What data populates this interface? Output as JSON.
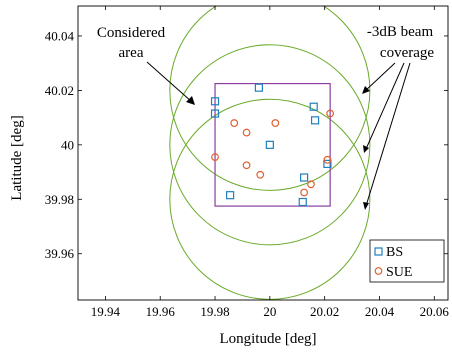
{
  "chart_data": {
    "type": "scatter",
    "xlabel": "Longitude [deg]",
    "ylabel": "Latitude [deg]",
    "xlim": [
      19.93,
      20.065
    ],
    "ylim": [
      39.943,
      40.051
    ],
    "xticks": [
      19.94,
      19.96,
      19.98,
      20,
      20.02,
      20.04,
      20.06
    ],
    "yticks": [
      39.96,
      39.98,
      40,
      40.02,
      40.04
    ],
    "grid": false,
    "legend_position": "bottom-right",
    "series": [
      {
        "name": "BS",
        "marker": "square",
        "color": "#1f7fbf",
        "points": [
          [
            19.98,
            40.016
          ],
          [
            19.98,
            40.0115
          ],
          [
            19.996,
            40.021
          ],
          [
            20.0,
            40.0
          ],
          [
            20.016,
            40.014
          ],
          [
            20.0165,
            40.009
          ],
          [
            19.9855,
            39.9815
          ],
          [
            20.0125,
            39.988
          ],
          [
            20.012,
            39.979
          ],
          [
            20.021,
            39.993
          ]
        ]
      },
      {
        "name": "SUE",
        "marker": "circle",
        "color": "#e06030",
        "points": [
          [
            19.987,
            40.008
          ],
          [
            19.9915,
            40.0045
          ],
          [
            20.002,
            40.008
          ],
          [
            20.022,
            40.0115
          ],
          [
            19.98,
            39.9955
          ],
          [
            19.9915,
            39.9925
          ],
          [
            19.9965,
            39.989
          ],
          [
            20.015,
            39.9855
          ],
          [
            20.0125,
            39.9825
          ],
          [
            20.021,
            39.9945
          ]
        ]
      }
    ],
    "considered_area": {
      "x": [
        19.98,
        20.022
      ],
      "y": [
        39.9775,
        40.0225
      ],
      "color": "#8a3fa0"
    },
    "beams": {
      "color": "#6aaa2a",
      "center_x": 20.0,
      "center_y": [
        40.02,
        40.0,
        39.98
      ],
      "radius_x": 0.0365
    },
    "annotations": {
      "area_label_line1": "Considered",
      "area_label_line2": "area",
      "beam_label_line1": "-3dB beam",
      "beam_label_line2": "coverage"
    }
  }
}
